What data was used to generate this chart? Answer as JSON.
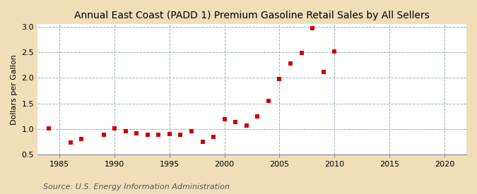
{
  "title": "Annual East Coast (PADD 1) Premium Gasoline Retail Sales by All Sellers",
  "ylabel": "Dollars per Gallon",
  "source": "Source: U.S. Energy Information Administration",
  "fig_bg_color": "#f0deb8",
  "plot_bg_color": "#ffffff",
  "marker_color": "#cc0000",
  "grid_color": "#a0b0c0",
  "xlim": [
    1983,
    2022
  ],
  "ylim": [
    0.5,
    3.05
  ],
  "xticks": [
    1985,
    1990,
    1995,
    2000,
    2005,
    2010,
    2015,
    2020
  ],
  "yticks": [
    0.5,
    1.0,
    1.5,
    2.0,
    2.5,
    3.0
  ],
  "years": [
    1984,
    1986,
    1987,
    1989,
    1990,
    1991,
    1992,
    1993,
    1994,
    1995,
    1996,
    1997,
    1998,
    1999,
    2000,
    2001,
    2002,
    2003,
    2004,
    2005,
    2006,
    2007,
    2008,
    2009,
    2010
  ],
  "values": [
    1.01,
    0.74,
    0.8,
    0.89,
    1.01,
    0.96,
    0.92,
    0.88,
    0.88,
    0.9,
    0.88,
    0.95,
    0.75,
    0.85,
    1.19,
    1.13,
    1.07,
    1.25,
    1.55,
    1.98,
    2.28,
    2.49,
    2.97,
    2.12,
    2.52
  ],
  "title_fontsize": 10,
  "axis_fontsize": 8,
  "source_fontsize": 8
}
